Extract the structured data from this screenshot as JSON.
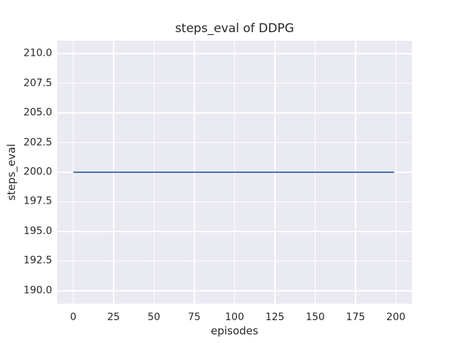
{
  "figure": {
    "background": "#ffffff",
    "plot_background": "#eaeaf2",
    "grid_color": "#ffffff",
    "text_color": "#262626"
  },
  "chart_data": {
    "type": "line",
    "title": "steps_eval of DDPG",
    "xlabel": "episodes",
    "ylabel": "steps_eval",
    "x_tick_labels": [
      "0",
      "25",
      "50",
      "75",
      "100",
      "125",
      "150",
      "175",
      "200"
    ],
    "x_tick_values": [
      0,
      25,
      50,
      75,
      100,
      125,
      150,
      175,
      200
    ],
    "y_tick_labels": [
      "190.0",
      "192.5",
      "195.0",
      "197.5",
      "200.0",
      "202.5",
      "205.0",
      "207.5",
      "210.0"
    ],
    "y_tick_values": [
      190.0,
      192.5,
      195.0,
      197.5,
      200.0,
      202.5,
      205.0,
      207.5,
      210.0
    ],
    "xlim": [
      -10,
      210
    ],
    "ylim": [
      188.9,
      211.1
    ],
    "grid": true,
    "series": [
      {
        "name": "steps_eval",
        "color": "#4c72b0",
        "x": [
          0,
          199
        ],
        "y": [
          200,
          200
        ]
      }
    ]
  }
}
